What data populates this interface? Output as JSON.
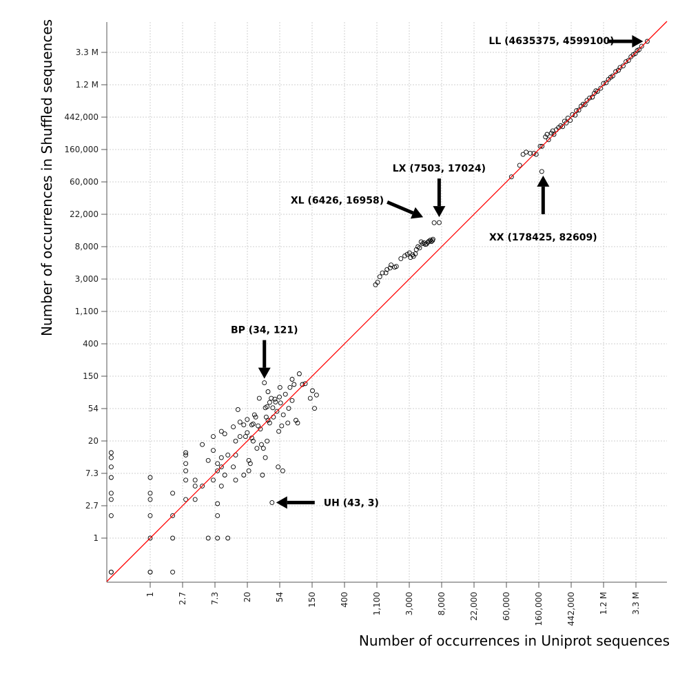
{
  "colors": {
    "identity_line": "#ff0000",
    "points": "#000000",
    "grid": "#cfcfcf",
    "arrows": "#000000"
  },
  "chart_data": {
    "type": "scatter",
    "title": "",
    "xlabel": "Number of occurrences in Uniprot sequences",
    "ylabel": "Number of occurrences in Shuffled sequences",
    "xscale": "log",
    "yscale": "log",
    "grid": true,
    "xticks": [
      "1",
      "2.7",
      "7.3",
      "20",
      "54",
      "150",
      "400",
      "1,100",
      "3,000",
      "8,000",
      "22,000",
      "60,000",
      "160,000",
      "442,000",
      "1.2 M",
      "3.3 M"
    ],
    "yticks": [
      "1",
      "2.7",
      "7.3",
      "20",
      "54",
      "150",
      "400",
      "1,100",
      "3,000",
      "8,000",
      "22,000",
      "60,000",
      "160,000",
      "442,000",
      "1.2 M",
      "3.3 M"
    ],
    "reference_line": "y = x",
    "annotations": [
      {
        "text": "LL (4635375, 4599100)",
        "x": 4635375,
        "y": 4599100,
        "arrow": "right"
      },
      {
        "text": "LX (7503, 17024)",
        "x": 7503,
        "y": 17024,
        "arrow": "down"
      },
      {
        "text": "XL (6426, 16958)",
        "x": 6426,
        "y": 16958,
        "arrow": "down-right"
      },
      {
        "text": "XX (178425, 82609)",
        "x": 178425,
        "y": 82609,
        "arrow": "up"
      },
      {
        "text": "BP (34, 121)",
        "x": 34,
        "y": 121,
        "arrow": "down"
      },
      {
        "text": "UH (43, 3)",
        "x": 43,
        "y": 3,
        "arrow": "left"
      }
    ],
    "points": [
      [
        0.3,
        0.35
      ],
      [
        0.3,
        0.35
      ],
      [
        0.3,
        12
      ],
      [
        0.3,
        14
      ],
      [
        0.3,
        9
      ],
      [
        0.3,
        6.5
      ],
      [
        0.3,
        4
      ],
      [
        0.3,
        3.3
      ],
      [
        0.3,
        2
      ],
      [
        1,
        0.35
      ],
      [
        1,
        1
      ],
      [
        1,
        2
      ],
      [
        1,
        3.3
      ],
      [
        1,
        4
      ],
      [
        1,
        6.5
      ],
      [
        1,
        0.35
      ],
      [
        2,
        0.35
      ],
      [
        2,
        2
      ],
      [
        2,
        4
      ],
      [
        2,
        1
      ],
      [
        3,
        3.3
      ],
      [
        3,
        8
      ],
      [
        3,
        10
      ],
      [
        3,
        6
      ],
      [
        3,
        13
      ],
      [
        3,
        14
      ],
      [
        4,
        3.3
      ],
      [
        4,
        5
      ],
      [
        4,
        6
      ],
      [
        5,
        5
      ],
      [
        5,
        18
      ],
      [
        6,
        1
      ],
      [
        6,
        11
      ],
      [
        7,
        6
      ],
      [
        7,
        15
      ],
      [
        7,
        23
      ],
      [
        8,
        8
      ],
      [
        8,
        10
      ],
      [
        8,
        1
      ],
      [
        8,
        2
      ],
      [
        8,
        2.9
      ],
      [
        9,
        5
      ],
      [
        9,
        9
      ],
      [
        9,
        12
      ],
      [
        9,
        27
      ],
      [
        10,
        7
      ],
      [
        10,
        25
      ],
      [
        11,
        1
      ],
      [
        11,
        13
      ],
      [
        13,
        9
      ],
      [
        13,
        31
      ],
      [
        14,
        6
      ],
      [
        14,
        13
      ],
      [
        14,
        20
      ],
      [
        15,
        53
      ],
      [
        16,
        23
      ],
      [
        16,
        36
      ],
      [
        18,
        7
      ],
      [
        18,
        33
      ],
      [
        19,
        23
      ],
      [
        20,
        26
      ],
      [
        20,
        39
      ],
      [
        21,
        8
      ],
      [
        21,
        11
      ],
      [
        22,
        10
      ],
      [
        23,
        22
      ],
      [
        23,
        33
      ],
      [
        24,
        20
      ],
      [
        24,
        34
      ],
      [
        25,
        45
      ],
      [
        26,
        42
      ],
      [
        27,
        16
      ],
      [
        28,
        32
      ],
      [
        29,
        75
      ],
      [
        30,
        29
      ],
      [
        31,
        18
      ],
      [
        32,
        7
      ],
      [
        33,
        16
      ],
      [
        34,
        121
      ],
      [
        35,
        12
      ],
      [
        35,
        56
      ],
      [
        36,
        42
      ],
      [
        37,
        20
      ],
      [
        37,
        58
      ],
      [
        38,
        38
      ],
      [
        38,
        92
      ],
      [
        40,
        35
      ],
      [
        40,
        66
      ],
      [
        42,
        75
      ],
      [
        43,
        3
      ],
      [
        44,
        56
      ],
      [
        45,
        42
      ],
      [
        47,
        73
      ],
      [
        48,
        67
      ],
      [
        50,
        50
      ],
      [
        52,
        9
      ],
      [
        53,
        27
      ],
      [
        54,
        78
      ],
      [
        55,
        105
      ],
      [
        56,
        65
      ],
      [
        58,
        32
      ],
      [
        60,
        8
      ],
      [
        61,
        45
      ],
      [
        65,
        85
      ],
      [
        70,
        35
      ],
      [
        72,
        55
      ],
      [
        75,
        105
      ],
      [
        80,
        135
      ],
      [
        80,
        70
      ],
      [
        85,
        115
      ],
      [
        90,
        38
      ],
      [
        95,
        35
      ],
      [
        100,
        160
      ],
      [
        110,
        115
      ],
      [
        120,
        118
      ],
      [
        140,
        75
      ],
      [
        150,
        95
      ],
      [
        160,
        55
      ],
      [
        170,
        83
      ],
      [
        1050,
        2500
      ],
      [
        1120,
        2700
      ],
      [
        1200,
        3200
      ],
      [
        1300,
        3600
      ],
      [
        1450,
        3600
      ],
      [
        1500,
        4000
      ],
      [
        1700,
        4600
      ],
      [
        1900,
        4300
      ],
      [
        2000,
        4400
      ],
      [
        1650,
        4200
      ],
      [
        2300,
        5600
      ],
      [
        2600,
        6100
      ],
      [
        2800,
        6400
      ],
      [
        3000,
        6700
      ],
      [
        3100,
        5800
      ],
      [
        3300,
        6300
      ],
      [
        3400,
        6000
      ],
      [
        3600,
        6500
      ],
      [
        3700,
        7400
      ],
      [
        3900,
        8100
      ],
      [
        4100,
        7800
      ],
      [
        4300,
        9400
      ],
      [
        4500,
        8900
      ],
      [
        4700,
        9100
      ],
      [
        4900,
        8700
      ],
      [
        5100,
        8800
      ],
      [
        5300,
        9300
      ],
      [
        5500,
        9600
      ],
      [
        5700,
        9900
      ],
      [
        5900,
        9500
      ],
      [
        6100,
        9800
      ],
      [
        6200,
        10200
      ],
      [
        6426,
        16958
      ],
      [
        7503,
        17024
      ],
      [
        70000,
        70000
      ],
      [
        90000,
        100000
      ],
      [
        100000,
        140000
      ],
      [
        110000,
        150000
      ],
      [
        125000,
        145000
      ],
      [
        140000,
        145000
      ],
      [
        150000,
        140000
      ],
      [
        178425,
        82609
      ],
      [
        170000,
        180000
      ],
      [
        180000,
        180000
      ],
      [
        200000,
        240000
      ],
      [
        210000,
        260000
      ],
      [
        220000,
        220000
      ],
      [
        240000,
        270000
      ],
      [
        250000,
        290000
      ],
      [
        260000,
        260000
      ],
      [
        280000,
        300000
      ],
      [
        300000,
        320000
      ],
      [
        320000,
        340000
      ],
      [
        340000,
        330000
      ],
      [
        360000,
        390000
      ],
      [
        380000,
        370000
      ],
      [
        400000,
        430000
      ],
      [
        430000,
        400000
      ],
      [
        460000,
        480000
      ],
      [
        500000,
        470000
      ],
      [
        520000,
        540000
      ],
      [
        560000,
        550000
      ],
      [
        600000,
        620000
      ],
      [
        640000,
        660000
      ],
      [
        680000,
        650000
      ],
      [
        720000,
        740000
      ],
      [
        780000,
        800000
      ],
      [
        850000,
        820000
      ],
      [
        900000,
        920000
      ],
      [
        950000,
        1000000
      ],
      [
        1000000,
        980000
      ],
      [
        1100000,
        1080000
      ],
      [
        1200000,
        1250000
      ],
      [
        1300000,
        1280000
      ],
      [
        1400000,
        1420000
      ],
      [
        1500000,
        1520000
      ],
      [
        1600000,
        1580000
      ],
      [
        1750000,
        1800000
      ],
      [
        1900000,
        1880000
      ],
      [
        2000000,
        2050000
      ],
      [
        2200000,
        2150000
      ],
      [
        2400000,
        2450000
      ],
      [
        2600000,
        2550000
      ],
      [
        2800000,
        2850000
      ],
      [
        3000000,
        3050000
      ],
      [
        3200000,
        3150000
      ],
      [
        3400000,
        3450000
      ],
      [
        3600000,
        3550000
      ],
      [
        3900000,
        3950000
      ],
      [
        4635375,
        4599100
      ]
    ]
  }
}
